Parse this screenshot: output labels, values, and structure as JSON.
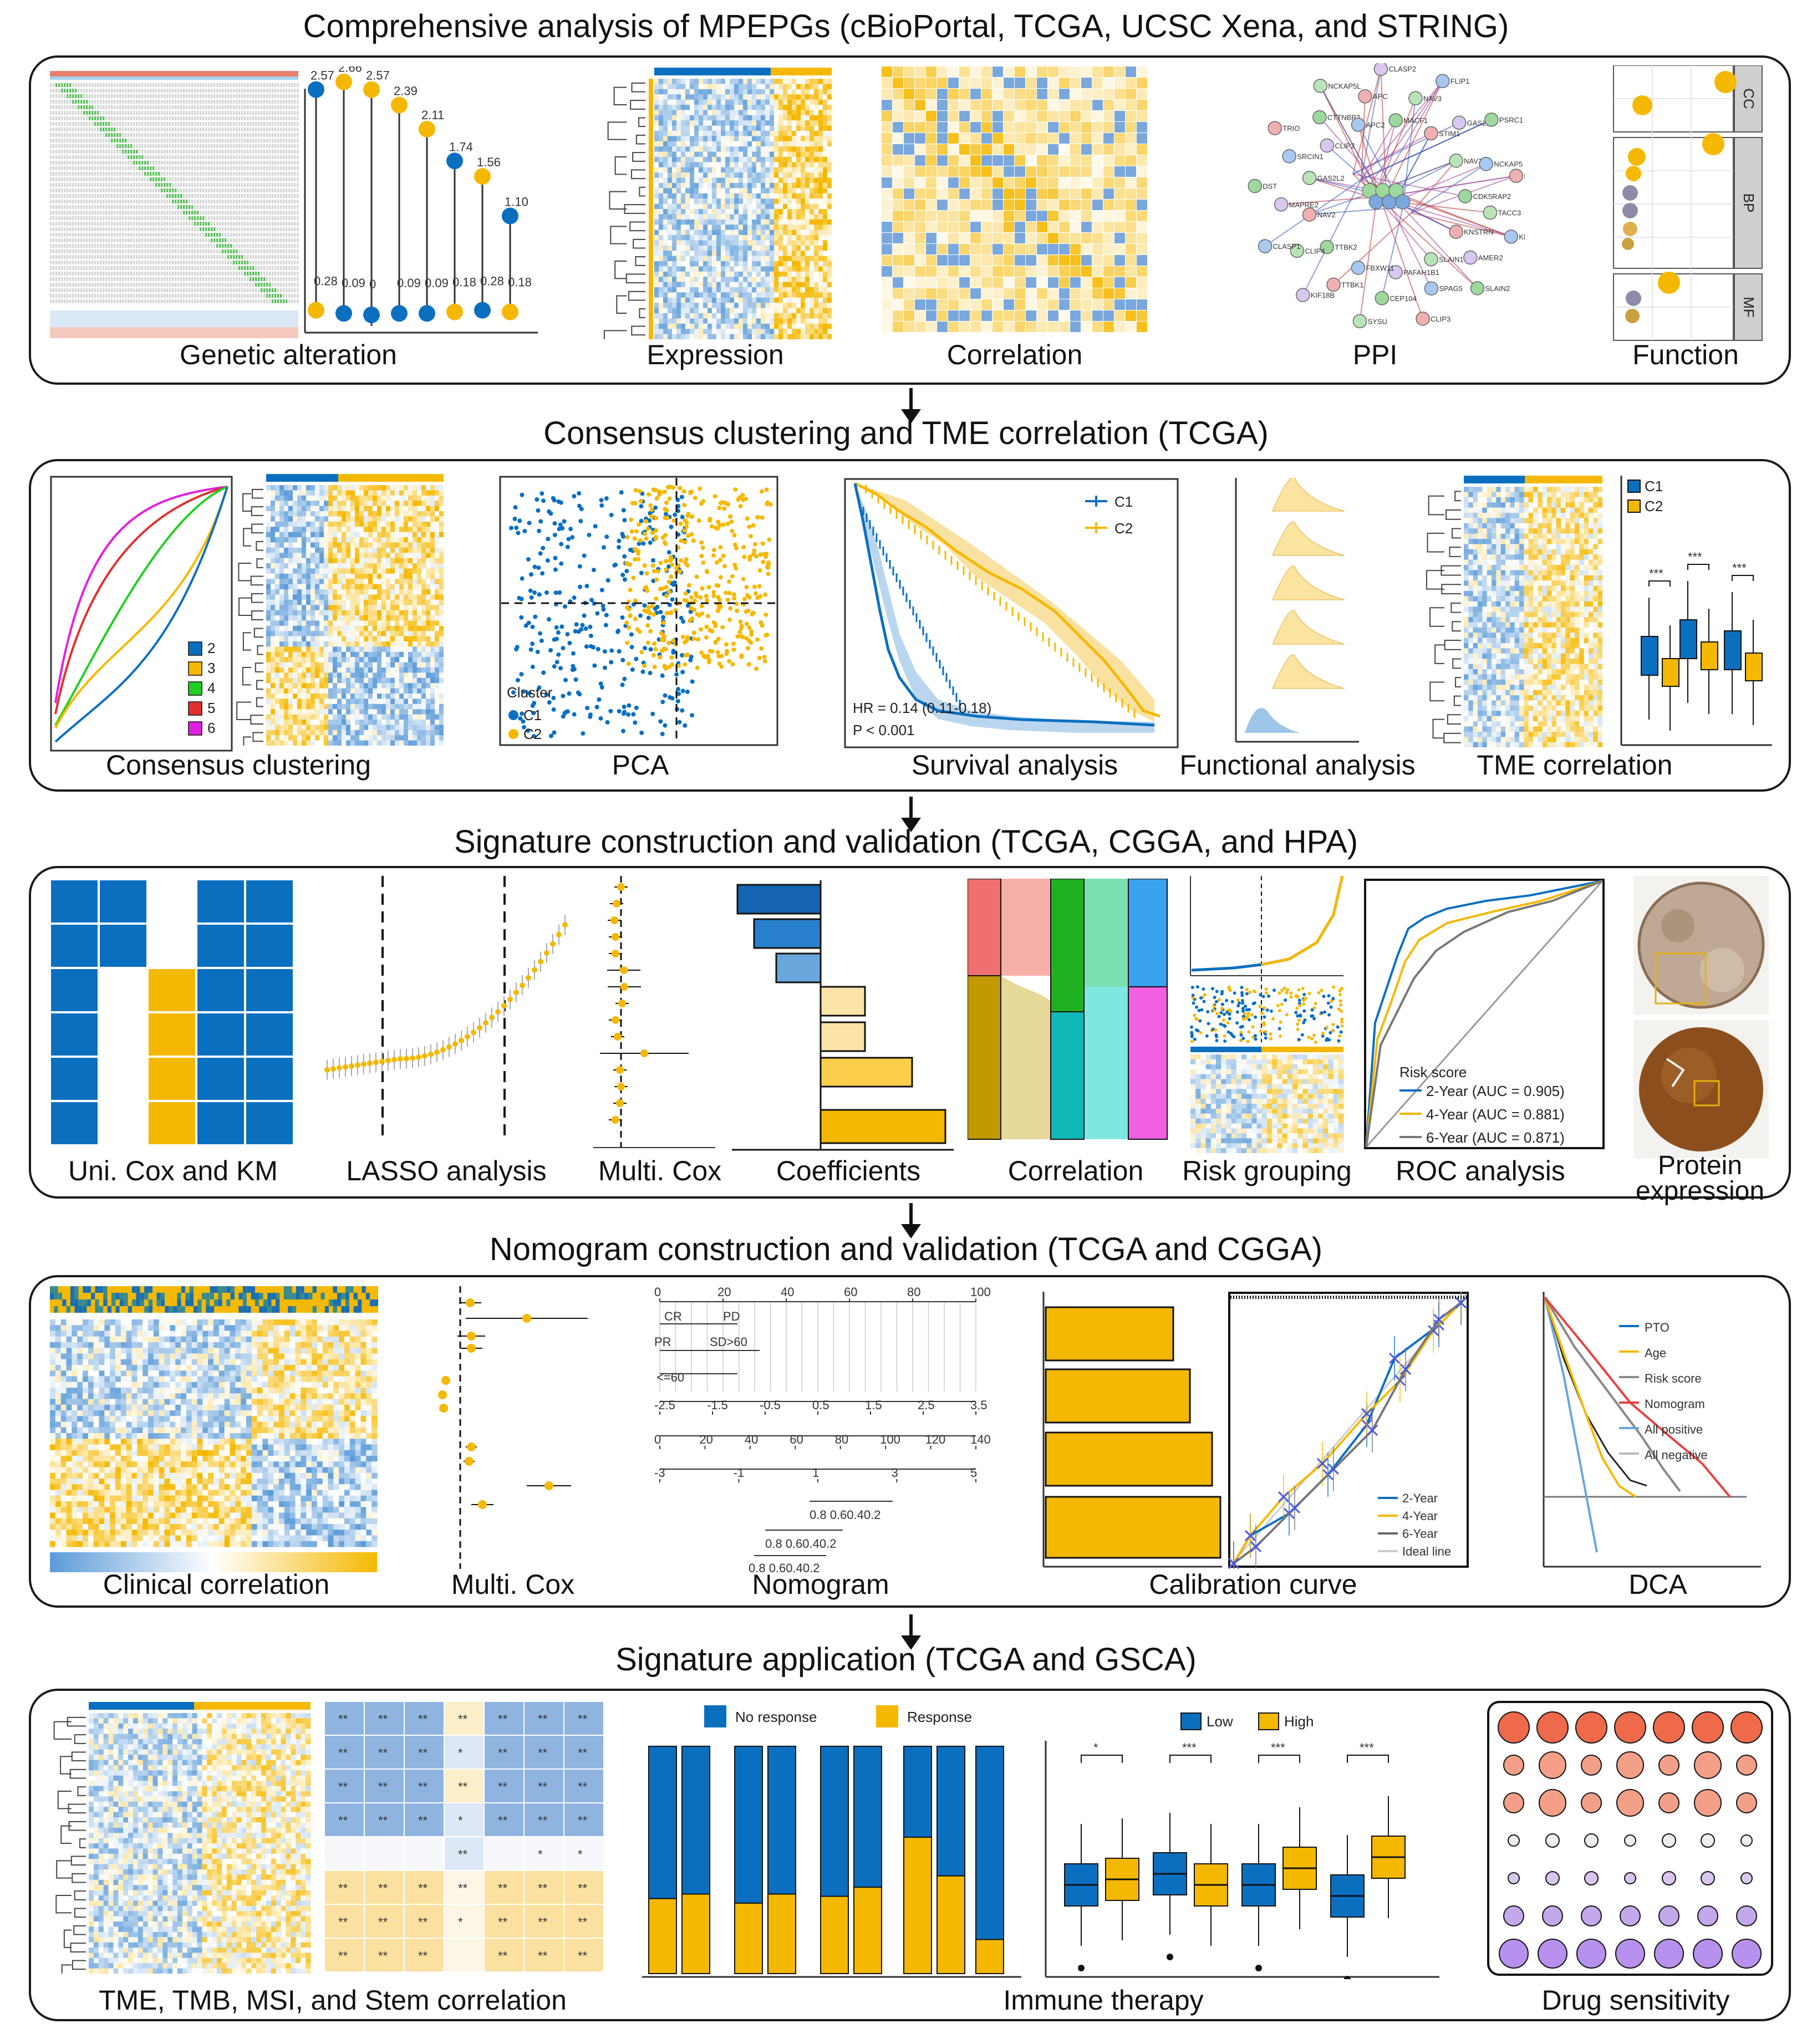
{
  "colors": {
    "blue": "#0b6fc0",
    "yellow": "#f5b800",
    "light_blue": "#9cc5e8",
    "light_yellow": "#fbe3a0"
  },
  "sections": [
    {
      "title": "Comprehensive analysis of MPEPGs (cBioPortal, TCGA, UCSC Xena, and STRING)",
      "captions": [
        "Genetic alteration",
        "Expression",
        "Correlation",
        "PPI",
        "Function"
      ]
    },
    {
      "title": "Consensus clustering and TME correlation (TCGA)",
      "captions": [
        "Consensus clustering",
        "PCA",
        "Survival analysis",
        "Functional analysis",
        "TME correlation"
      ]
    },
    {
      "title": "Signature construction and validation (TCGA, CGGA, and HPA)",
      "captions": [
        "Uni. Cox and KM",
        "LASSO analysis",
        "Multi. Cox",
        "Coefficients",
        "Correlation",
        "Risk grouping",
        "ROC analysis",
        "Protein expression"
      ]
    },
    {
      "title": "Nomogram construction and validation (TCGA and CGGA)",
      "captions": [
        "Clinical correlation",
        "Multi. Cox",
        "Nomogram",
        "Calibration curve",
        "DCA"
      ]
    },
    {
      "title": "Signature application (TCGA and GSCA)",
      "captions": [
        "TME, TMB, MSI, and Stem correlation",
        "Immune therapy",
        "Drug sensitivity"
      ]
    }
  ],
  "genetic_alteration": {
    "top_values": [
      "2.57",
      "2.66",
      "2.57",
      "2.39",
      "2.11",
      "1.74",
      "1.56",
      "1.10"
    ],
    "bottom_values": [
      "0.28",
      "0.09",
      "0",
      "0.09",
      "0.09",
      "0.18",
      "0.28",
      "0.18"
    ]
  },
  "function_facets": [
    "CC",
    "BP",
    "MF"
  ],
  "ppi_genes": [
    "CDK5RAP2",
    "TACC3",
    "KIF18A",
    "KNSTRN",
    "AMER2",
    "SLAIN2",
    "SLAIN1",
    "SPAG5",
    "CLIP3",
    "PAFAH1B1",
    "CEP104",
    "SYSU",
    "FBXW11",
    "TTBK1",
    "KIF18B",
    "TTBK2",
    "CLIP4",
    "CLASP1",
    "NAV2",
    "MAPRE2",
    "DST",
    "GAS2L2",
    "SRCIN1",
    "TRIO",
    "CLIP2",
    "CTTNBP2",
    "NCKAP5L",
    "APC2",
    "APC",
    "CLASP2",
    "MACF1",
    "NAV3",
    "FLIP1",
    "STIM1",
    "GAS2L1",
    "PSRC1",
    "NAV1",
    "NCKAP5",
    "PPP1R13L"
  ],
  "consensus_legend": [
    "2",
    "3",
    "4",
    "5",
    "6"
  ],
  "pca": {
    "legend_title": "Cluster",
    "legend": [
      "C1",
      "C2"
    ]
  },
  "survival": {
    "legend": [
      "C1",
      "C2"
    ],
    "hr": "HR = 0.14 (0.11-0.18)",
    "p": "P < 0.001"
  },
  "tme_box": {
    "legend": [
      "C1",
      "C2"
    ],
    "sig": [
      "***",
      "***",
      "***"
    ]
  },
  "roc": {
    "title": "Risk score",
    "items": [
      "2-Year (AUC = 0.905)",
      "4-Year (AUC = 0.881)",
      "6-Year (AUC = 0.871)"
    ]
  },
  "nomogram": {
    "top_axis": [
      "0",
      "20",
      "40",
      "60",
      "80",
      "100"
    ],
    "pto_labels": [
      "CR",
      "PD",
      "PR",
      "SD>60",
      "<=60"
    ],
    "axis2": [
      "-2.5",
      "-1.5",
      "-0.5",
      "0.5",
      "1.5",
      "2.5",
      "3.5"
    ],
    "axis3": [
      "0",
      "20",
      "40",
      "60",
      "80",
      "100",
      "120",
      "140"
    ],
    "axis4": [
      "-3",
      "-1",
      "1",
      "3",
      "5"
    ],
    "prob1": "0.8  0.60.40.2",
    "prob2": "0.8  0.60.40.2",
    "prob3": "0.8  0.60.40.2"
  },
  "calibration_legend": [
    "2-Year",
    "4-Year",
    "6-Year",
    "Ideal line"
  ],
  "dca_legend": [
    "PTO",
    "Age",
    "Risk score",
    "Nomogram",
    "All positive",
    "All negative"
  ],
  "tme_heat_stars": [
    [
      "**",
      "**",
      "**",
      "**",
      "**",
      "**",
      "**"
    ],
    [
      "**",
      "**",
      "**",
      "*",
      "**",
      "**",
      "**"
    ],
    [
      "**",
      "**",
      "**",
      "**",
      "**",
      "**",
      "**"
    ],
    [
      "**",
      "**",
      "**",
      "*",
      "**",
      "**",
      "**"
    ],
    [
      "",
      "",
      "",
      "**",
      "",
      "*",
      "*"
    ],
    [
      "**",
      "**",
      "**",
      "**",
      "**",
      "**",
      "**"
    ],
    [
      "**",
      "**",
      "**",
      "*",
      "**",
      "**",
      "**"
    ],
    [
      "**",
      "**",
      "**",
      "",
      "**",
      "**",
      "**"
    ]
  ],
  "immune_legend": [
    "No response",
    "Response"
  ],
  "immune_box": {
    "legend": [
      "Low",
      "High"
    ],
    "sig": [
      "*",
      "***",
      "***",
      "***"
    ]
  }
}
